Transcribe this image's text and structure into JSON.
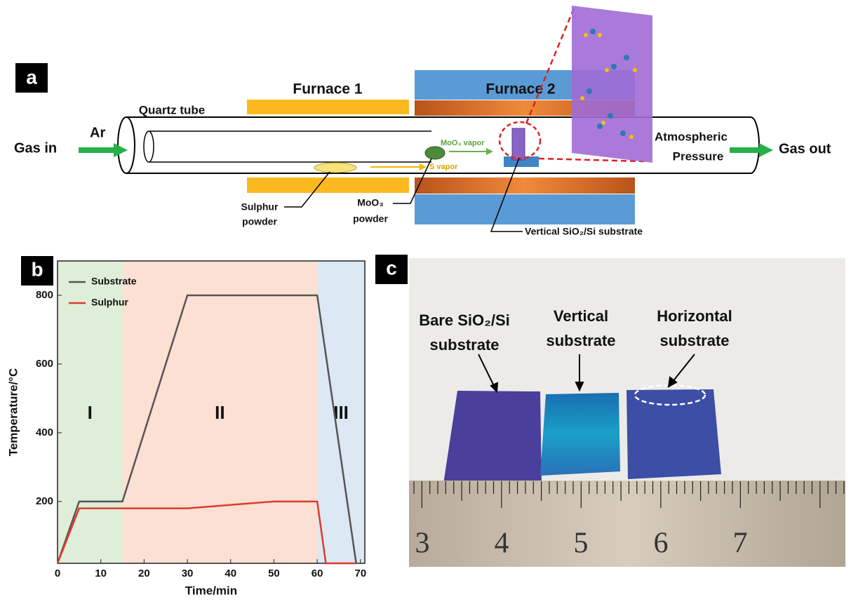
{
  "panel_a": {
    "label": "a",
    "furnace_1": "Furnace 1",
    "furnace_2": "Furnace 2",
    "quartz_tube": "Quartz tube",
    "gas_in": "Gas in",
    "ar": "Ar",
    "moo3_vapor": "MoO₃ vapor",
    "s_vapor": "S vapor",
    "atmospheric_pressure": [
      "Atmospheric",
      "Pressure"
    ],
    "gas_out": "Gas out",
    "sulphur_powder": [
      "Sulphur",
      "powder"
    ],
    "moo3_powder": [
      "MoO₃",
      "powder"
    ],
    "substrate": "Vertical SiO₂/Si substrate"
  },
  "chart_data": {
    "type": "line",
    "panel_label": "b",
    "xlabel": "Time/min",
    "ylabel": "Temperature/°C",
    "xlim": [
      0,
      71
    ],
    "ylim": [
      20,
      900
    ],
    "xticks": [
      0,
      10,
      20,
      30,
      40,
      50,
      60,
      70
    ],
    "yticks": [
      200,
      400,
      600,
      800
    ],
    "regions": [
      {
        "label": "I",
        "start": 0,
        "end": 15,
        "color": "#dfeed9"
      },
      {
        "label": "II",
        "start": 15,
        "end": 60,
        "color": "#fbe0d3"
      },
      {
        "label": "III",
        "start": 60,
        "end": 71,
        "color": "#dce8f3"
      }
    ],
    "series": [
      {
        "name": "Substrate",
        "color": "#555555",
        "x": [
          0,
          5,
          15,
          30,
          60,
          69
        ],
        "values": [
          20,
          200,
          200,
          800,
          800,
          20
        ]
      },
      {
        "name": "Sulphur",
        "color": "#e03a2e",
        "x": [
          0,
          5,
          15,
          30,
          50,
          60,
          62,
          69
        ],
        "values": [
          20,
          180,
          180,
          180,
          200,
          200,
          20,
          20
        ]
      }
    ]
  },
  "panel_c": {
    "label": "c",
    "bare": [
      "Bare SiO₂/Si",
      "substrate"
    ],
    "vertical": [
      "Vertical",
      "substrate"
    ],
    "horizontal": [
      "Horizontal",
      "substrate"
    ],
    "ruler": [
      "3",
      "4",
      "5",
      "6",
      "7"
    ]
  }
}
